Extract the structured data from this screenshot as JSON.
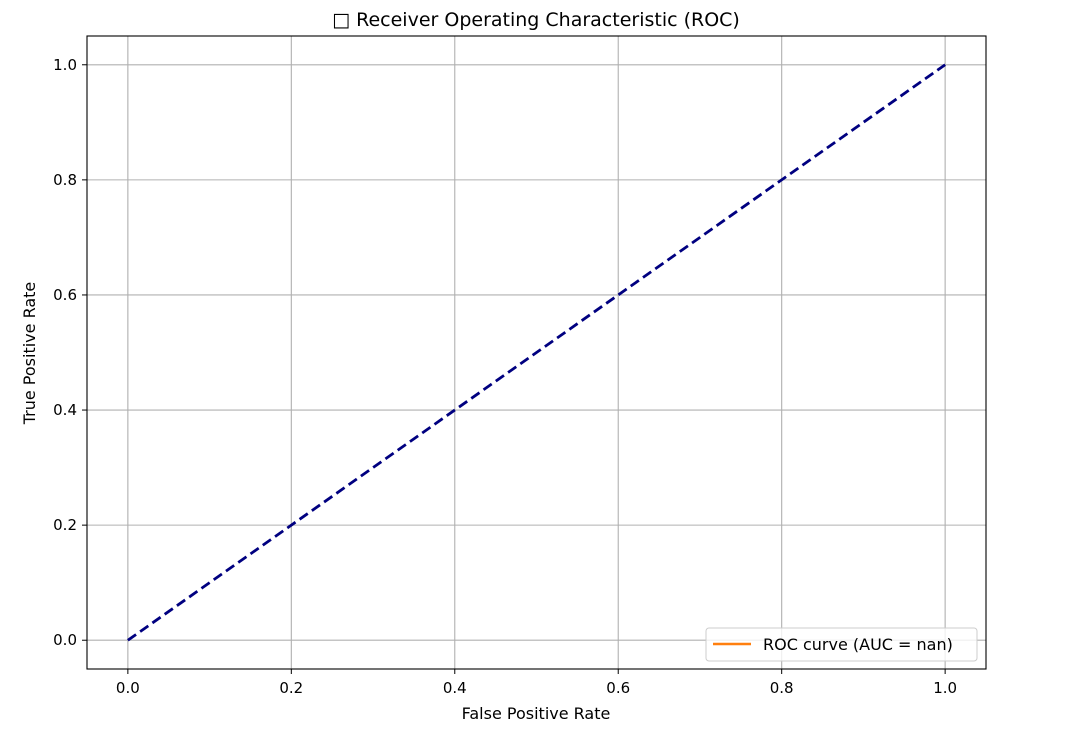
{
  "chart_data": {
    "type": "line",
    "title": "□ Receiver Operating Characteristic (ROC)",
    "xlabel": "False Positive Rate",
    "ylabel": "True Positive Rate",
    "xlim": [
      -0.05,
      1.05
    ],
    "ylim": [
      -0.05,
      1.05
    ],
    "xticks": [
      0.0,
      0.2,
      0.4,
      0.6,
      0.8,
      1.0
    ],
    "yticks": [
      0.0,
      0.2,
      0.4,
      0.6,
      0.8,
      1.0
    ],
    "xtick_labels": [
      "0.0",
      "0.2",
      "0.4",
      "0.6",
      "0.8",
      "1.0"
    ],
    "ytick_labels": [
      "0.0",
      "0.2",
      "0.4",
      "0.6",
      "0.8",
      "1.0"
    ],
    "grid": true,
    "legend_position": "lower-right",
    "series": [
      {
        "name": "ROC curve (AUC = nan)",
        "color": "#ff7f0e",
        "style": "solid",
        "x": [],
        "y": [],
        "in_legend": true
      },
      {
        "color": "#000080",
        "style": "dashed",
        "x": [
          0,
          1
        ],
        "y": [
          0,
          1
        ],
        "in_legend": false
      }
    ]
  }
}
